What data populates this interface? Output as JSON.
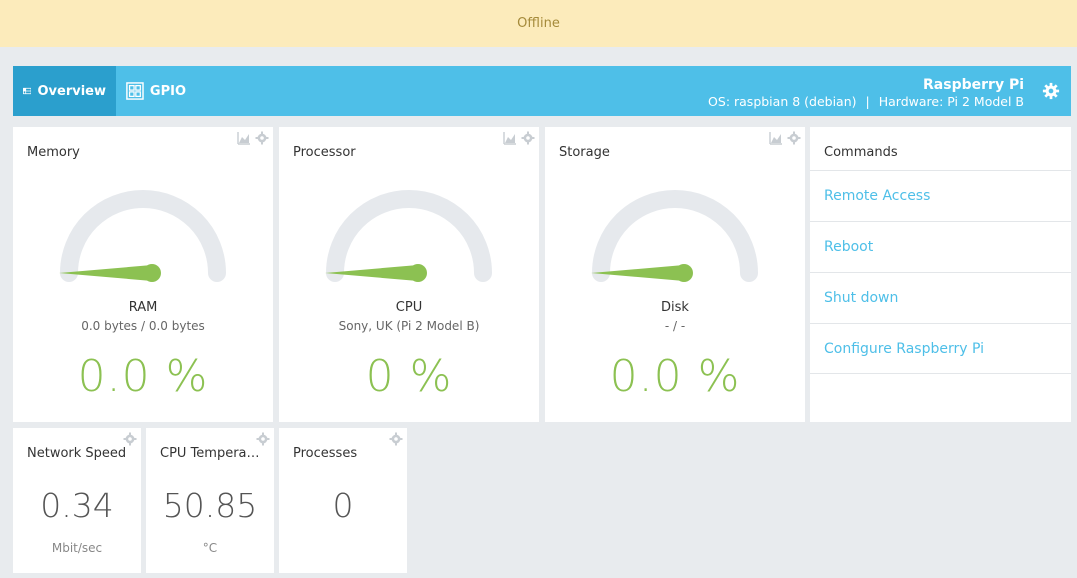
{
  "banner": {
    "text": "Offline"
  },
  "nav": {
    "tabs": [
      {
        "label": "Overview",
        "icon": "dashboard-icon",
        "active": true
      },
      {
        "label": "GPIO",
        "icon": "grid-icon",
        "active": false
      }
    ],
    "device_name": "Raspberry Pi",
    "os": "OS: raspbian 8 (debian)",
    "separator": "|",
    "hardware": "Hardware: Pi 2 Model B",
    "settings_icon": "gear-icon"
  },
  "widgets": {
    "memory": {
      "title": "Memory",
      "label": "RAM",
      "detail": "0.0 bytes / 0.0 bytes",
      "percent": "0.0 %",
      "value": 0
    },
    "processor": {
      "title": "Processor",
      "label": "CPU",
      "detail": "Sony, UK (Pi 2 Model B)",
      "percent": "0 %",
      "value": 0
    },
    "storage": {
      "title": "Storage",
      "label": "Disk",
      "detail": "- / -",
      "percent": "0.0 %",
      "value": 0
    }
  },
  "commands": {
    "title": "Commands",
    "items": [
      "Remote Access",
      "Reboot",
      "Shut down",
      "Configure Raspberry Pi"
    ]
  },
  "small_widgets": {
    "network": {
      "title": "Network Speed",
      "value": "0.34",
      "unit": "Mbit/sec"
    },
    "cpu_temp": {
      "title": "CPU Temperat…",
      "value": "50.85",
      "unit": "°C"
    },
    "processes": {
      "title": "Processes",
      "value": "0",
      "unit": ""
    }
  },
  "colors": {
    "accent": "#4ebfe8",
    "gauge_fill": "#8cc152",
    "gauge_track": "#e6e9ed",
    "banner_bg": "#fcebbb"
  }
}
